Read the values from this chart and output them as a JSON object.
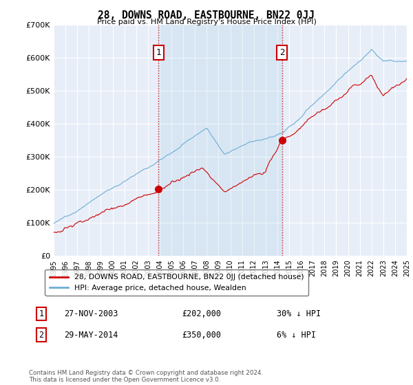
{
  "title": "28, DOWNS ROAD, EASTBOURNE, BN22 0JJ",
  "subtitle": "Price paid vs. HM Land Registry's House Price Index (HPI)",
  "ylim": [
    0,
    700000
  ],
  "yticks": [
    0,
    100000,
    200000,
    300000,
    400000,
    500000,
    600000,
    700000
  ],
  "ytick_labels": [
    "£0",
    "£100K",
    "£200K",
    "£300K",
    "£400K",
    "£500K",
    "£600K",
    "£700K"
  ],
  "hpi_color": "#6baed6",
  "price_color": "#cc0000",
  "vline_color": "#cc0000",
  "background_color": "#ffffff",
  "plot_bg_color": "#e8eef8",
  "grid_color": "#ffffff",
  "legend_label_price": "28, DOWNS ROAD, EASTBOURNE, BN22 0JJ (detached house)",
  "legend_label_hpi": "HPI: Average price, detached house, Wealden",
  "sale1_year": 2003.91,
  "sale1_value": 202000,
  "sale2_year": 2014.41,
  "sale2_value": 350000,
  "sale1_date": "27-NOV-2003",
  "sale1_price": "£202,000",
  "sale1_hpi": "30% ↓ HPI",
  "sale2_date": "29-MAY-2014",
  "sale2_price": "£350,000",
  "sale2_hpi": "6% ↓ HPI",
  "footer": "Contains HM Land Registry data © Crown copyright and database right 2024.\nThis data is licensed under the Open Government Licence v3.0.",
  "x_start": 1995,
  "x_end": 2025,
  "xticks": [
    1995,
    1996,
    1997,
    1998,
    1999,
    2000,
    2001,
    2002,
    2003,
    2004,
    2005,
    2006,
    2007,
    2008,
    2009,
    2010,
    2011,
    2012,
    2013,
    2014,
    2015,
    2016,
    2017,
    2018,
    2019,
    2020,
    2021,
    2022,
    2023,
    2024,
    2025
  ]
}
